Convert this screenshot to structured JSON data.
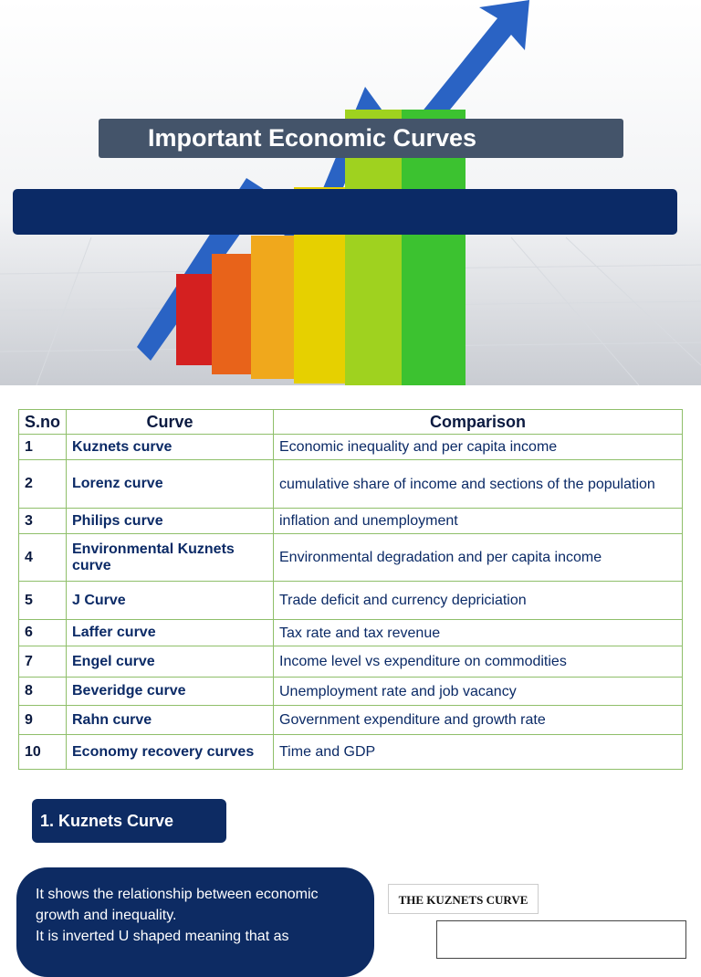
{
  "header": {
    "title": "Important Economic Curves"
  },
  "table": {
    "columns": [
      "S.no",
      "Curve",
      "Comparison"
    ],
    "rows": [
      [
        "1",
        "Kuznets curve",
        "Economic inequality and per capita income"
      ],
      [
        "2",
        "Lorenz curve",
        "cumulative share of income and sections of the population"
      ],
      [
        "3",
        "Philips curve",
        "inflation and unemployment"
      ],
      [
        "4",
        "Environmental Kuznets curve",
        "Environmental degradation and per capita income"
      ],
      [
        "5",
        "J Curve",
        "Trade deficit and currency depriciation"
      ],
      [
        "6",
        "Laffer curve",
        "Tax rate and tax revenue"
      ],
      [
        "7",
        "Engel curve",
        "Income level vs expenditure on commodities"
      ],
      [
        "8",
        "Beveridge curve",
        "Unemployment rate and job vacancy"
      ],
      [
        "9",
        "Rahn curve",
        "Government expenditure and growth rate"
      ],
      [
        "10",
        "Economy recovery curves",
        "Time and GDP"
      ]
    ]
  },
  "section": {
    "heading": "1. Kuznets Curve",
    "paragraphs": [
      "It shows the relationship between economic growth  and inequality.",
      "It is inverted U shaped meaning that as"
    ]
  },
  "figure": {
    "label": "THE KUZNETS CURVE"
  }
}
